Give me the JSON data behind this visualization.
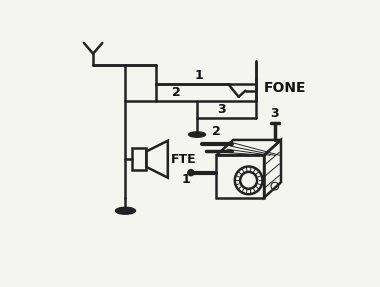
{
  "bg_color": "#f5f5f0",
  "line_color": "#222222",
  "text_color": "#111111",
  "figsize": [
    3.8,
    2.87
  ],
  "dpi": 100,
  "fone_label": "FONE",
  "fte_label": "FTE",
  "label1": "1",
  "label2": "2",
  "label3": "3"
}
